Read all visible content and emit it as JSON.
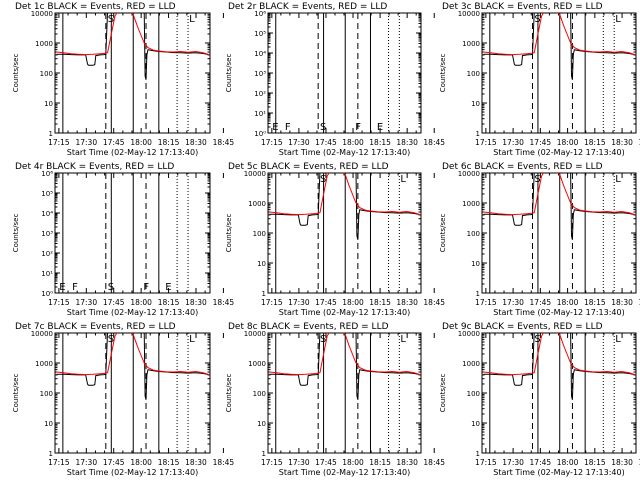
{
  "chart_data": {
    "type": "line",
    "x_label": "Start Time (02-May-12 17:13:40)",
    "y_label": "Counts/sec",
    "y_scale": "log",
    "x_ticks": [
      "17:15",
      "17:30",
      "17:45",
      "18:00",
      "18:15",
      "18:30",
      "18:45"
    ],
    "x_range_minutes": [
      -0.8,
      84
    ],
    "colors": {
      "events": "#000000",
      "lld": "#ff0000"
    },
    "markers": {
      "solid": [
        3.5,
        30,
        42,
        56
      ],
      "dashed": [
        27,
        49
      ],
      "dotted": [
        66,
        72
      ]
    },
    "panels": [
      {
        "title": "Det 1c BLACK = Events, RED = LLD",
        "type": "counts",
        "y_range_exp": [
          0,
          4
        ],
        "y_ticks": [
          "1",
          "10",
          "100",
          "1000",
          "10000"
        ],
        "labels": [
          {
            "t": "S",
            "x": 27.5,
            "top": true
          },
          {
            "t": "L",
            "x": 72,
            "top": true
          }
        ]
      },
      {
        "title": "Det 2r BLACK = Events, RED = LLD",
        "type": "empty",
        "y_range_exp": [
          0,
          6
        ],
        "y_ticks": [
          "10⁰",
          "10¹",
          "10²",
          "10³",
          "10⁴",
          "10⁵",
          "10⁶"
        ],
        "labels": [
          {
            "t": "E",
            "x": 1,
            "top": false
          },
          {
            "t": "F",
            "x": 8,
            "top": false
          },
          {
            "t": "S",
            "x": 27.5,
            "top": false
          },
          {
            "t": "F",
            "x": 47,
            "top": false
          },
          {
            "t": "E",
            "x": 59,
            "top": false
          }
        ]
      },
      {
        "title": "Det 3c BLACK = Events, RED = LLD",
        "type": "counts",
        "y_range_exp": [
          0,
          4
        ],
        "y_ticks": [
          "1",
          "10",
          "100",
          "1000",
          "10000"
        ],
        "labels": [
          {
            "t": "S",
            "x": 27.5,
            "top": true
          },
          {
            "t": "L",
            "x": 72,
            "top": true
          }
        ]
      },
      {
        "title": "Det 4r BLACK = Events, RED = LLD",
        "type": "empty",
        "y_range_exp": [
          0,
          6
        ],
        "y_ticks": [
          "10⁰",
          "10¹",
          "10²",
          "10³",
          "10⁴",
          "10⁵",
          "10⁶"
        ],
        "labels": [
          {
            "t": "E",
            "x": 1,
            "top": false
          },
          {
            "t": "F",
            "x": 8,
            "top": false
          },
          {
            "t": "S",
            "x": 27.5,
            "top": false
          },
          {
            "t": "F",
            "x": 47,
            "top": false
          },
          {
            "t": "E",
            "x": 59,
            "top": false
          }
        ]
      },
      {
        "title": "Det 5c BLACK = Events, RED = LLD",
        "type": "counts",
        "y_range_exp": [
          0,
          4
        ],
        "y_ticks": [
          "1",
          "10",
          "100",
          "1000",
          "10000"
        ],
        "labels": [
          {
            "t": "S",
            "x": 27.5,
            "top": true
          },
          {
            "t": "L",
            "x": 72,
            "top": true
          }
        ]
      },
      {
        "title": "Det 6c BLACK = Events, RED = LLD",
        "type": "counts",
        "y_range_exp": [
          0,
          4
        ],
        "y_ticks": [
          "1",
          "10",
          "100",
          "1000",
          "10000"
        ],
        "labels": [
          {
            "t": "S",
            "x": 27.5,
            "top": true
          },
          {
            "t": "L",
            "x": 72,
            "top": true
          }
        ]
      },
      {
        "title": "Det 7c BLACK = Events, RED = LLD",
        "type": "counts",
        "y_range_exp": [
          0,
          4
        ],
        "y_ticks": [
          "1",
          "10",
          "100",
          "1000",
          "10000"
        ],
        "labels": [
          {
            "t": "S",
            "x": 27.5,
            "top": true
          },
          {
            "t": "L",
            "x": 72,
            "top": true
          }
        ]
      },
      {
        "title": "Det 8c BLACK = Events, RED = LLD",
        "type": "counts",
        "y_range_exp": [
          0,
          4
        ],
        "y_ticks": [
          "1",
          "10",
          "100",
          "1000",
          "10000"
        ],
        "labels": [
          {
            "t": "S",
            "x": 27.5,
            "top": true
          },
          {
            "t": "L",
            "x": 72,
            "top": true
          }
        ]
      },
      {
        "title": "Det 9c BLACK = Events, RED = LLD",
        "type": "counts",
        "y_range_exp": [
          0,
          4
        ],
        "y_ticks": [
          "1",
          "10",
          "100",
          "1000",
          "10000"
        ],
        "labels": [
          {
            "t": "S",
            "x": 27.5,
            "top": true
          },
          {
            "t": "L",
            "x": 72,
            "top": true
          }
        ]
      }
    ],
    "series": [
      {
        "name": "Events",
        "x": [
          0,
          4,
          8,
          12,
          16,
          17,
          17.5,
          20,
          21,
          21.5,
          24,
          26,
          27,
          28,
          31,
          34,
          37,
          40,
          44,
          48,
          48.5,
          49,
          49.5,
          50,
          53,
          56,
          60,
          64,
          68,
          72,
          76,
          80,
          84
        ],
        "y": [
          420,
          420,
          410,
          400,
          400,
          200,
          180,
          180,
          190,
          380,
          400,
          410,
          420,
          12000,
          12000,
          12000,
          12000,
          12000,
          12000,
          12000,
          80,
          60,
          400,
          600,
          550,
          520,
          500,
          480,
          470,
          460,
          470,
          450,
          400
        ]
      },
      {
        "name": "LLD",
        "x": [
          0,
          4,
          8,
          12,
          16,
          20,
          24,
          26,
          27,
          28,
          30,
          32,
          34,
          36,
          38,
          40,
          42,
          44,
          46,
          48,
          50,
          53,
          56,
          60,
          64,
          68,
          72,
          76,
          80,
          84
        ],
        "y": [
          500,
          470,
          440,
          420,
          410,
          420,
          440,
          450,
          460,
          480,
          2000,
          8000,
          12000,
          12000,
          12000,
          12000,
          9000,
          4000,
          2000,
          1000,
          700,
          580,
          540,
          510,
          500,
          520,
          490,
          520,
          480,
          400
        ]
      }
    ]
  }
}
